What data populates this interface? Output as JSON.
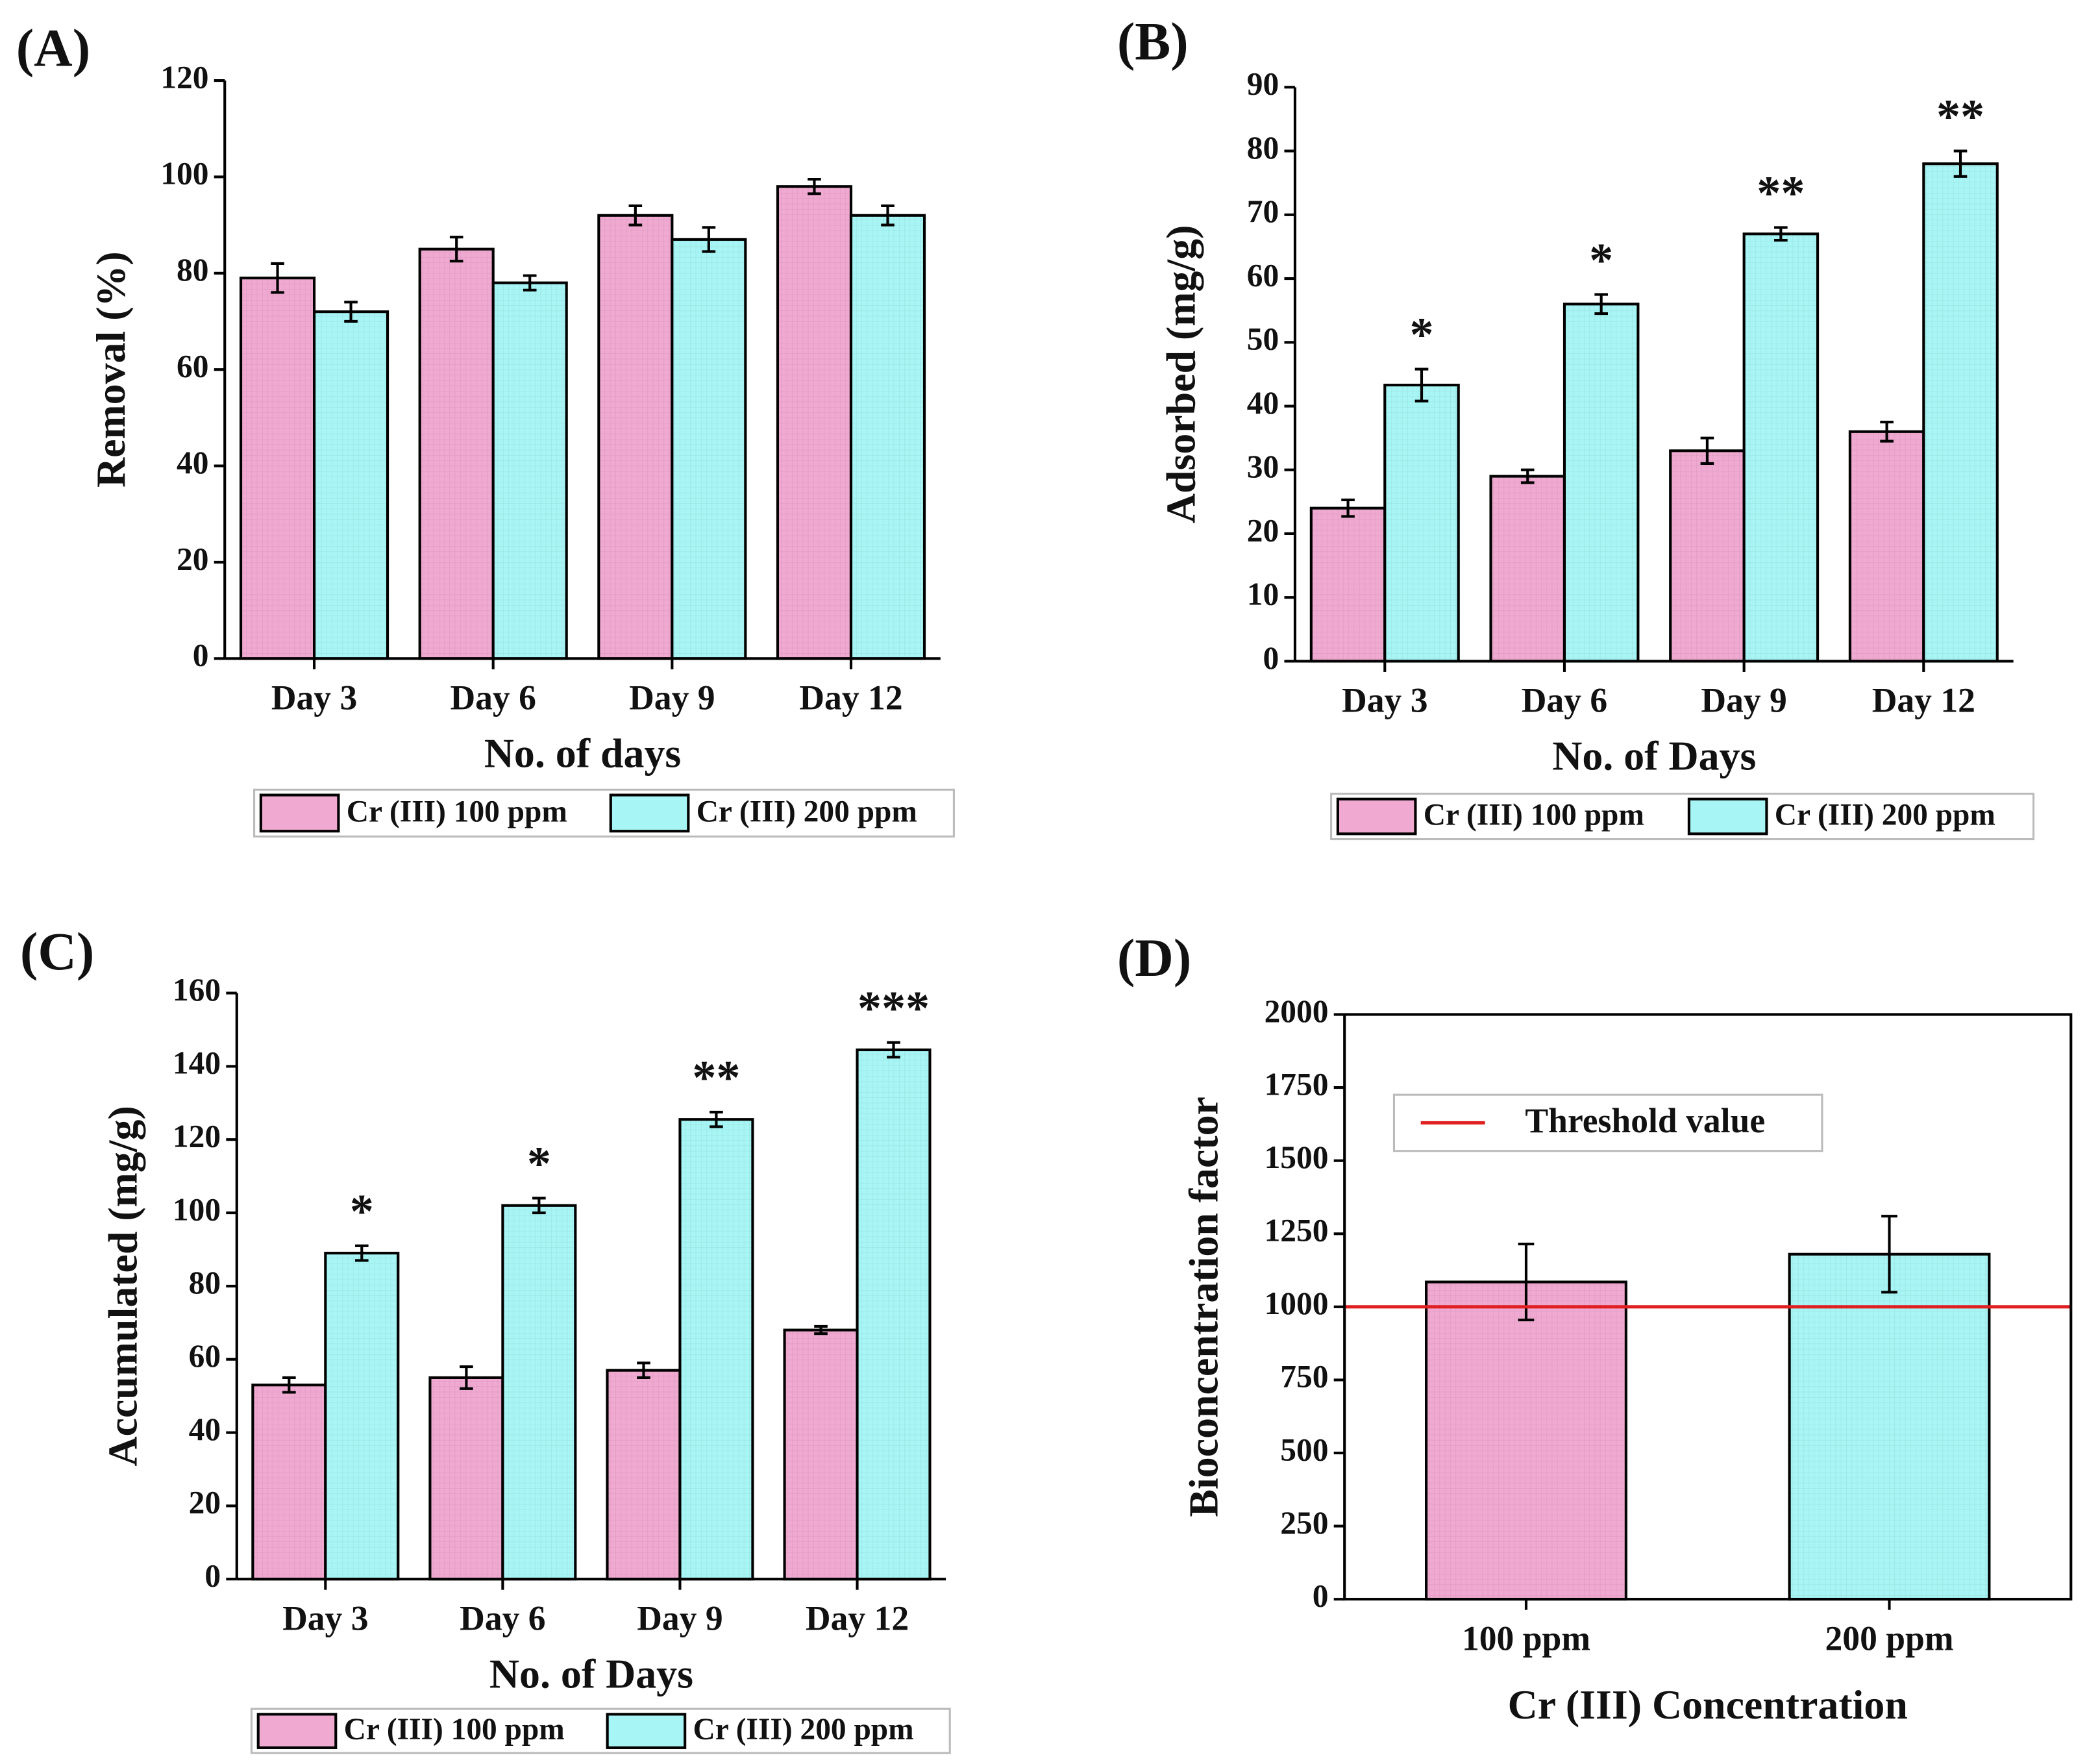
{
  "chart_data": [
    {
      "type": "bar",
      "panel": "(A)",
      "xlabel": "No. of days",
      "ylabel": "Removal (%)",
      "categories": [
        "Day 3",
        "Day 6",
        "Day 9",
        "Day 12"
      ],
      "series": [
        {
          "name": "Cr (III) 100 ppm",
          "color": "#f0a9d1",
          "values": [
            79,
            85,
            92,
            98
          ],
          "errors": [
            3,
            2.5,
            2,
            1.5
          ]
        },
        {
          "name": "Cr (III) 200 ppm",
          "color": "#a8f5f5",
          "values": [
            72,
            78,
            87,
            92
          ],
          "errors": [
            2,
            1.5,
            2.5,
            2
          ]
        }
      ],
      "ylim": [
        0,
        120
      ],
      "yticks": [
        0,
        20,
        40,
        60,
        80,
        100,
        120
      ],
      "legend": "bottom"
    },
    {
      "type": "bar",
      "panel": "(B)",
      "xlabel": "No. of Days",
      "ylabel": "Adsorbed (mg/g)",
      "categories": [
        "Day 3",
        "Day 6",
        "Day 9",
        "Day 12"
      ],
      "series": [
        {
          "name": "Cr (III) 100 ppm",
          "color": "#f0a9d1",
          "values": [
            24,
            29,
            33,
            36
          ],
          "errors": [
            1.3,
            1,
            2,
            1.5
          ]
        },
        {
          "name": "Cr (III) 200 ppm",
          "color": "#a8f5f5",
          "values": [
            43.3,
            56,
            67,
            78
          ],
          "errors": [
            2.5,
            1.5,
            1,
            2
          ],
          "annotations": [
            "*",
            "*",
            "**",
            "**"
          ]
        }
      ],
      "ylim": [
        0,
        90
      ],
      "yticks": [
        0,
        10,
        20,
        30,
        40,
        50,
        60,
        70,
        80,
        90
      ],
      "legend": "bottom"
    },
    {
      "type": "bar",
      "panel": "(C)",
      "xlabel": "No. of Days",
      "ylabel": "Accumulated (mg/g)",
      "categories": [
        "Day 3",
        "Day 6",
        "Day 9",
        "Day 12"
      ],
      "series": [
        {
          "name": "Cr (III) 100 ppm",
          "color": "#f0a9d1",
          "values": [
            53,
            55,
            57,
            68
          ],
          "errors": [
            2,
            3,
            2,
            1
          ]
        },
        {
          "name": "Cr (III) 200 ppm",
          "color": "#a8f5f5",
          "values": [
            89,
            102,
            125.5,
            144.5
          ],
          "errors": [
            2,
            2,
            2,
            2
          ],
          "annotations": [
            "*",
            "*",
            "**",
            "***"
          ]
        }
      ],
      "ylim": [
        0,
        160
      ],
      "yticks": [
        0,
        20,
        40,
        60,
        80,
        100,
        120,
        140,
        160
      ],
      "legend": "bottom"
    },
    {
      "type": "bar",
      "panel": "(D)",
      "xlabel": "Cr (III) Concentration",
      "ylabel": "Bioconcentration factor",
      "categories": [
        "100 ppm",
        "200 ppm"
      ],
      "values": [
        1085,
        1180
      ],
      "errors": [
        130,
        130
      ],
      "colors": [
        "#f0a9d1",
        "#a8f5f5"
      ],
      "threshold": {
        "name": "Threshold value",
        "value": 1000,
        "color": "#e02020"
      },
      "ylim": [
        0,
        2000
      ],
      "yticks": [
        0,
        250,
        500,
        750,
        1000,
        1250,
        1500,
        1750,
        2000
      ],
      "legend": "upper left",
      "frame": true
    }
  ]
}
